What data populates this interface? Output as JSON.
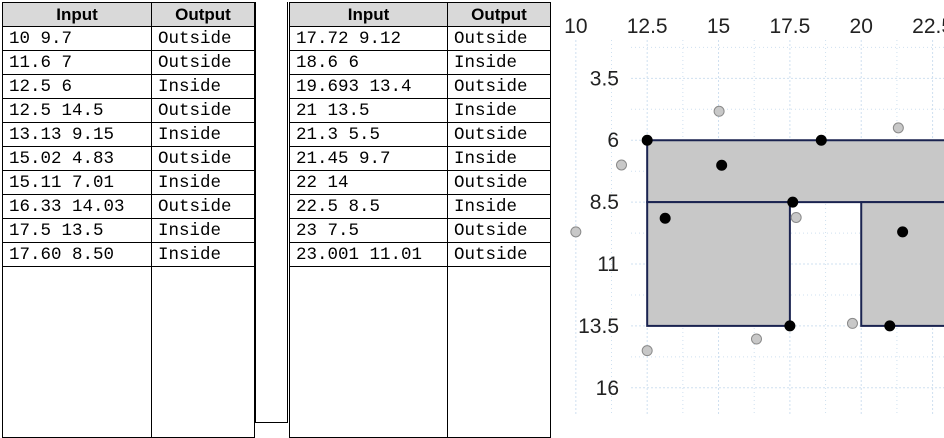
{
  "tables": [
    {
      "headers": [
        "Input",
        "Output"
      ],
      "rows": [
        [
          "10 9.7",
          "Outside"
        ],
        [
          "11.6 7",
          "Outside"
        ],
        [
          "12.5 6",
          "Inside"
        ],
        [
          "12.5 14.5",
          "Outside"
        ],
        [
          "13.13 9.15",
          "Inside"
        ],
        [
          "15.02 4.83",
          "Outside"
        ],
        [
          "15.11 7.01",
          "Inside"
        ],
        [
          "16.33 14.03",
          "Outside"
        ],
        [
          "17.5 13.5",
          "Inside"
        ],
        [
          "17.60 8.50",
          "Inside"
        ]
      ]
    },
    {
      "headers": [
        "Input",
        "Output"
      ],
      "rows": [
        [
          "17.72 9.12",
          "Outside"
        ],
        [
          "18.6 6",
          "Inside"
        ],
        [
          "19.693 13.4",
          "Outside"
        ],
        [
          "21 13.5",
          "Inside"
        ],
        [
          "21.3 5.5",
          "Outside"
        ],
        [
          "21.45 9.7",
          "Inside"
        ],
        [
          "22 14",
          "Outside"
        ],
        [
          "22.5 8.5",
          "Inside"
        ],
        [
          "23 7.5",
          "Outside"
        ],
        [
          "23.001 11.01",
          "Outside"
        ]
      ]
    }
  ],
  "chart_data": {
    "type": "scatter",
    "x_ticks": [
      "10",
      "12.5",
      "15",
      "17.5",
      "20",
      "22.5"
    ],
    "y_ticks": [
      "3.5",
      "6",
      "8.5",
      "11",
      "13.5",
      "16"
    ],
    "xlim": [
      9.2,
      22.9
    ],
    "ylim": [
      1.95,
      17.1
    ],
    "y_inverted": true,
    "grid": true,
    "colors": {
      "region_fill": "#c8c8c8",
      "region_stroke": "#1a2350",
      "inside_point": "#000000",
      "outside_point": "#c8c8c8",
      "grid": "#cfe0f0"
    },
    "regions": [
      {
        "name": "upper-band",
        "x": [
          12.5,
          24
        ],
        "y": [
          6,
          8.5
        ]
      },
      {
        "name": "left-block",
        "x": [
          12.5,
          17.5
        ],
        "y": [
          8.5,
          13.5
        ]
      },
      {
        "name": "right-block",
        "x": [
          20,
          24
        ],
        "y": [
          8.5,
          13.5
        ]
      }
    ],
    "points": [
      {
        "x": 10,
        "y": 9.7,
        "status": "Outside"
      },
      {
        "x": 11.6,
        "y": 7,
        "status": "Outside"
      },
      {
        "x": 12.5,
        "y": 6,
        "status": "Inside"
      },
      {
        "x": 12.5,
        "y": 14.5,
        "status": "Outside"
      },
      {
        "x": 13.13,
        "y": 9.15,
        "status": "Inside"
      },
      {
        "x": 15.02,
        "y": 4.83,
        "status": "Outside"
      },
      {
        "x": 15.11,
        "y": 7.01,
        "status": "Inside"
      },
      {
        "x": 16.33,
        "y": 14.03,
        "status": "Outside"
      },
      {
        "x": 17.5,
        "y": 13.5,
        "status": "Inside"
      },
      {
        "x": 17.6,
        "y": 8.5,
        "status": "Inside"
      },
      {
        "x": 17.72,
        "y": 9.12,
        "status": "Outside"
      },
      {
        "x": 18.6,
        "y": 6,
        "status": "Inside"
      },
      {
        "x": 19.693,
        "y": 13.4,
        "status": "Outside"
      },
      {
        "x": 21,
        "y": 13.5,
        "status": "Inside"
      },
      {
        "x": 21.3,
        "y": 5.5,
        "status": "Outside"
      },
      {
        "x": 21.45,
        "y": 9.7,
        "status": "Inside"
      }
    ]
  }
}
